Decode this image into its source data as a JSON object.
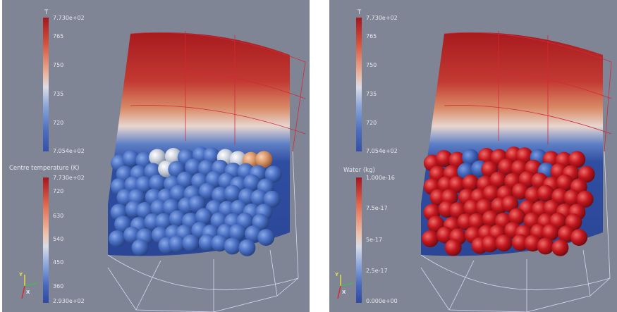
{
  "left_view": {
    "temperature_bar": {
      "title": "T",
      "labels": [
        "7.730e+02",
        "765",
        "750",
        "735",
        "720",
        "7.054e+02"
      ]
    },
    "centre_bar": {
      "title": "Centre temperature (K)",
      "labels": [
        "7.730e+02",
        "720",
        "630",
        "540",
        "450",
        "360",
        "2.930e+02"
      ]
    },
    "orientation_axes": {
      "y": "Y",
      "x": "X"
    }
  },
  "right_view": {
    "temperature_bar": {
      "title": "T",
      "labels": [
        "7.730e+02",
        "765",
        "750",
        "735",
        "720",
        "7.054e+02"
      ]
    },
    "water_bar": {
      "title": "Water (kg)",
      "labels": [
        "1.000e-16",
        "7.5e-17",
        "5e-17",
        "2.5e-17",
        "0.000e+00"
      ]
    },
    "orientation_axes": {
      "y": "Y",
      "x": "X"
    }
  },
  "colors": {
    "background": "#808595",
    "hot": "#a8151d",
    "cold": "#3450a8",
    "particle_cold": "#4a72c8",
    "particle_wet": "#c4171f"
  }
}
